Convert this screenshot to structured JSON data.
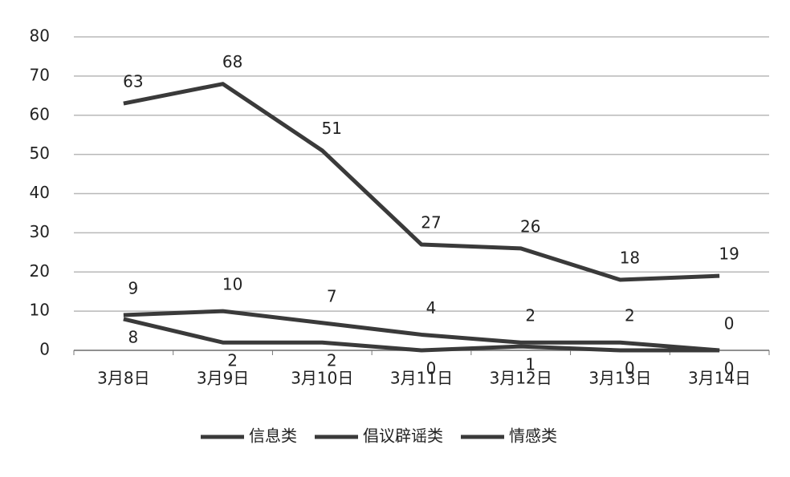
{
  "chart_data": {
    "type": "line",
    "categories": [
      "3月8日",
      "3月9日",
      "3月10日",
      "3月11日",
      "3月12日",
      "3月13日",
      "3月14日"
    ],
    "series": [
      {
        "name": "信息类",
        "color": "#3a3a3a",
        "values": [
          63,
          68,
          51,
          27,
          26,
          18,
          19
        ]
      },
      {
        "name": "倡议辟谣类",
        "color": "#3a3a3a",
        "values": [
          9,
          10,
          7,
          4,
          2,
          2,
          0
        ]
      },
      {
        "name": "情感类",
        "color": "#3a3a3a",
        "values": [
          8,
          2,
          2,
          0,
          1,
          0,
          0
        ]
      }
    ],
    "ylim": [
      0,
      80
    ],
    "yticks": [
      0,
      10,
      20,
      30,
      40,
      50,
      60,
      70,
      80
    ],
    "grid": true,
    "legend": "bottom"
  }
}
